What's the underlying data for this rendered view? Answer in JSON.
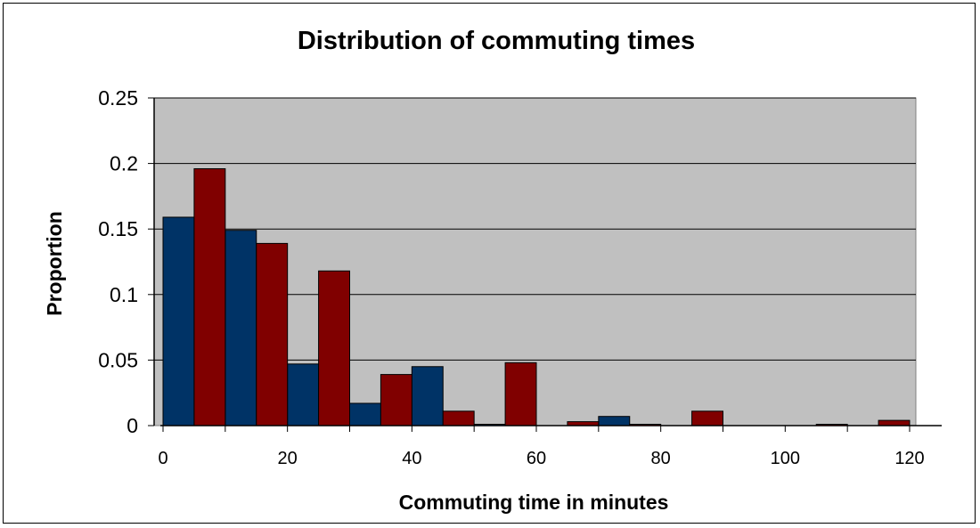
{
  "chart_data": {
    "type": "bar",
    "title": "Distribution of commuting times",
    "xlabel": "Commuting time in minutes",
    "ylabel": "Proportion",
    "xlim": [
      0,
      125
    ],
    "ylim": [
      0,
      0.25
    ],
    "xticks": [
      0,
      20,
      40,
      60,
      80,
      100,
      120
    ],
    "xtick_labels": [
      "0",
      "20",
      "40",
      "60",
      "80",
      "100",
      "120"
    ],
    "yticks": [
      0,
      0.05,
      0.1,
      0.15,
      0.2,
      0.25
    ],
    "ytick_labels": [
      "0",
      "0.05",
      "0.1",
      "0.15",
      "0.2",
      "0.25"
    ],
    "grid": true,
    "legend": "none",
    "bin_width": 5,
    "series": [
      {
        "color": "#003366",
        "x": [
          2.5,
          12.5,
          22.5,
          32.5,
          42.5,
          52.5,
          62.5,
          72.5,
          82.5,
          92.5,
          102.5,
          112.5,
          122.5
        ],
        "values": [
          0.159,
          0.149,
          0.047,
          0.017,
          0.045,
          0.001,
          0.0,
          0.007,
          0.0,
          0.0,
          0.0,
          0.0,
          0.0
        ]
      },
      {
        "color": "#800000",
        "x": [
          7.5,
          17.5,
          27.5,
          37.5,
          47.5,
          57.5,
          67.5,
          77.5,
          87.5,
          97.5,
          107.5,
          117.5
        ],
        "values": [
          0.196,
          0.139,
          0.118,
          0.039,
          0.011,
          0.048,
          0.003,
          0.001,
          0.011,
          0.0,
          0.001,
          0.004
        ]
      }
    ]
  }
}
